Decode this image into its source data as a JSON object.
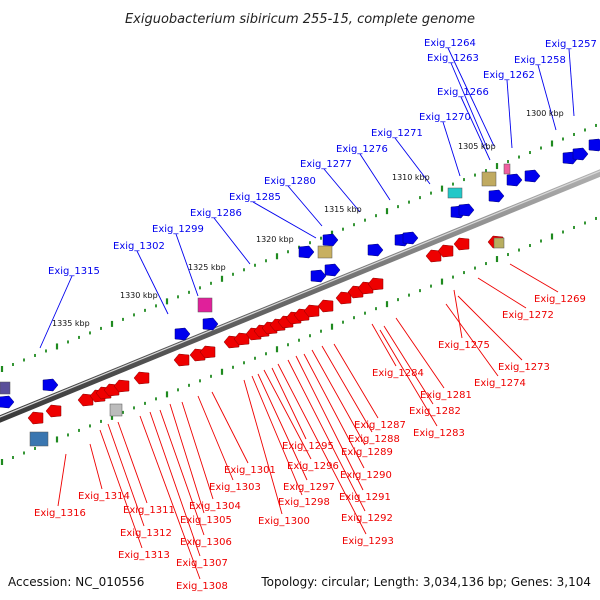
{
  "title": "Exiguobacterium sibiricum 255-15, complete genome",
  "footer": {
    "accession": "Accession: NC_010556",
    "summary": "Topology: circular; Length: 3,034,136 bp; Genes: 3,104"
  },
  "colors": {
    "forward_strand": "#0000ee",
    "reverse_strand": "#ee0000",
    "backbone": "#6f6f6f",
    "tick": "#1f8a1f"
  },
  "kbp_markers": [
    "1300 kbp",
    "1305 kbp",
    "1310 kbp",
    "1315 kbp",
    "1320 kbp",
    "1325 kbp",
    "1330 kbp",
    "1335 kbp"
  ],
  "forward_labels": [
    "Exig_1264",
    "Exig_1263",
    "Exig_1257",
    "Exig_1262",
    "Exig_1258",
    "Exig_1266",
    "Exig_1270",
    "Exig_1271",
    "Exig_1276",
    "Exig_1277",
    "Exig_1280",
    "Exig_1285",
    "Exig_1286",
    "Exig_1299",
    "Exig_1302",
    "Exig_1315"
  ],
  "reverse_labels": [
    "Exig_1269",
    "Exig_1272",
    "Exig_1275",
    "Exig_1273",
    "Exig_1274",
    "Exig_1284",
    "Exig_1281",
    "Exig_1282",
    "Exig_1283",
    "Exig_1287",
    "Exig_1288",
    "Exig_1289",
    "Exig_1290",
    "Exig_1291",
    "Exig_1292",
    "Exig_1293",
    "Exig_1295",
    "Exig_1296",
    "Exig_1297",
    "Exig_1298",
    "Exig_1300",
    "Exig_1301",
    "Exig_1303",
    "Exig_1304",
    "Exig_1305",
    "Exig_1306",
    "Exig_1307",
    "Exig_1308",
    "Exig_1311",
    "Exig_1312",
    "Exig_1313",
    "Exig_1314",
    "Exig_1316"
  ]
}
